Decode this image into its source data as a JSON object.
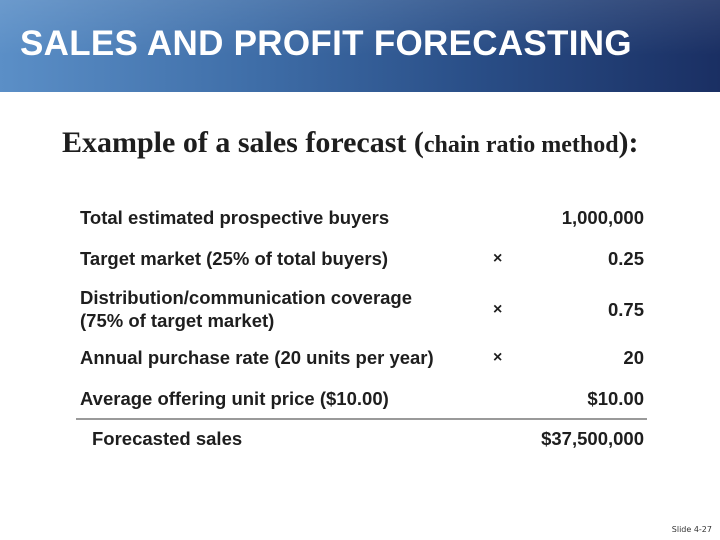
{
  "header": {
    "title": "SALES AND PROFIT FORECASTING"
  },
  "subtitle": {
    "part1": "Example of a sales forecast (",
    "part2": "chain ratio method",
    "part3": "):"
  },
  "table": {
    "rows": [
      {
        "label": "Total estimated prospective buyers",
        "operator": "",
        "value": "1,000,000"
      },
      {
        "label": "Target market (25% of total buyers)",
        "operator": "×",
        "value": "0.25"
      },
      {
        "label_line1": "Distribution/communication coverage",
        "label_line2": "(75% of target market)",
        "operator": "×",
        "value": "0.75"
      },
      {
        "label": "Annual purchase rate (20 units per year)",
        "operator": "×",
        "value": "20"
      },
      {
        "label": "Average offering unit price ($10.00)",
        "operator": "",
        "value": "$10.00"
      }
    ],
    "total": {
      "label": "Forecasted sales",
      "value": "$37,500,000"
    }
  },
  "footer": {
    "slide_number": "Slide 4-27"
  },
  "colors": {
    "title_bar_start": "#5b8fc7",
    "title_bar_end": "#1a2f63",
    "text": "#1e1e1e",
    "rule": "#9a9a9a"
  }
}
